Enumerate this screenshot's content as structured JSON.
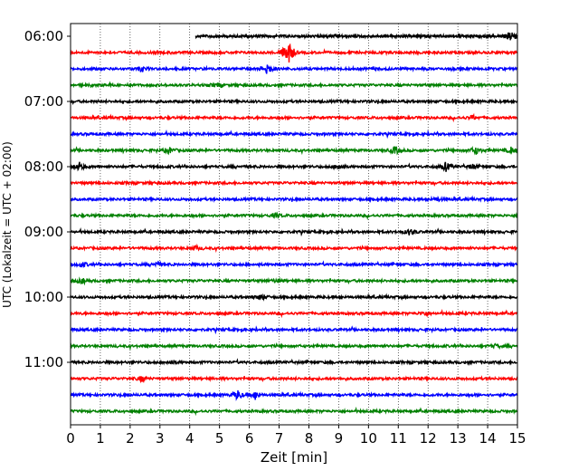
{
  "chart_data": {
    "type": "line",
    "title": "",
    "xlabel": "Zeit  [min]",
    "ylabel": "UTC (Lokalzeit = UTC + 02:00)",
    "xlim": [
      0,
      15
    ],
    "x_ticks": [
      "0",
      "1",
      "2",
      "3",
      "4",
      "5",
      "6",
      "7",
      "8",
      "9",
      "10",
      "11",
      "12",
      "13",
      "14",
      "15"
    ],
    "y_tick_labels": [
      "06:00",
      "07:00",
      "08:00",
      "09:00",
      "10:00",
      "11:00"
    ],
    "grid": "vertical dotted lines at each minute",
    "trace_minutes": 15,
    "trace_colors_cycle": [
      "#000000",
      "#ff0000",
      "#0000ff",
      "#008000"
    ],
    "traces": [
      {
        "start_time": "06:00",
        "data_start_min": 4.2,
        "events": [
          {
            "minute": 14.8,
            "amplitude": 0.9
          }
        ]
      },
      {
        "start_time": "06:15",
        "data_start_min": 0,
        "events": [
          {
            "minute": 7.3,
            "amplitude": 2.5
          }
        ]
      },
      {
        "start_time": "06:30",
        "data_start_min": 0,
        "events": [
          {
            "minute": 6.6,
            "amplitude": 1.0
          },
          {
            "minute": 2.4,
            "amplitude": 0.4
          }
        ]
      },
      {
        "start_time": "06:45",
        "data_start_min": 0,
        "events": [
          {
            "minute": 4.9,
            "amplitude": 0.3
          }
        ]
      },
      {
        "start_time": "07:00",
        "data_start_min": 0,
        "events": []
      },
      {
        "start_time": "07:15",
        "data_start_min": 0,
        "events": [
          {
            "minute": 13.5,
            "amplitude": 0.3
          }
        ]
      },
      {
        "start_time": "07:30",
        "data_start_min": 0,
        "events": []
      },
      {
        "start_time": "07:45",
        "data_start_min": 0,
        "events": [
          {
            "minute": 3.3,
            "amplitude": 0.5
          },
          {
            "minute": 10.9,
            "amplitude": 0.6
          },
          {
            "minute": 13.6,
            "amplitude": 0.6
          },
          {
            "minute": 14.8,
            "amplitude": 0.5
          }
        ]
      },
      {
        "start_time": "08:00",
        "data_start_min": 0,
        "events": [
          {
            "minute": 0.3,
            "amplitude": 0.6
          },
          {
            "minute": 9.0,
            "amplitude": 0.5
          },
          {
            "minute": 12.6,
            "amplitude": 0.7
          },
          {
            "minute": 13.5,
            "amplitude": 0.4
          }
        ]
      },
      {
        "start_time": "08:15",
        "data_start_min": 0,
        "events": []
      },
      {
        "start_time": "08:30",
        "data_start_min": 0,
        "events": [
          {
            "minute": 12.3,
            "amplitude": 0.3
          }
        ]
      },
      {
        "start_time": "08:45",
        "data_start_min": 0,
        "events": [
          {
            "minute": 6.9,
            "amplitude": 0.3
          }
        ]
      },
      {
        "start_time": "09:00",
        "data_start_min": 0,
        "events": [
          {
            "minute": 11.4,
            "amplitude": 0.5
          }
        ]
      },
      {
        "start_time": "09:15",
        "data_start_min": 0,
        "events": [
          {
            "minute": 4.2,
            "amplitude": 0.3
          }
        ]
      },
      {
        "start_time": "09:30",
        "data_start_min": 0,
        "events": [
          {
            "minute": 0.4,
            "amplitude": 0.4
          },
          {
            "minute": 2.9,
            "amplitude": 0.3
          }
        ]
      },
      {
        "start_time": "09:45",
        "data_start_min": 0,
        "events": [
          {
            "minute": 0.4,
            "amplitude": 0.4
          },
          {
            "minute": 6.9,
            "amplitude": 0.3
          }
        ]
      },
      {
        "start_time": "10:00",
        "data_start_min": 0,
        "events": [
          {
            "minute": 6.4,
            "amplitude": 0.5
          }
        ]
      },
      {
        "start_time": "10:15",
        "data_start_min": 0,
        "events": [
          {
            "minute": 11.9,
            "amplitude": 0.3
          }
        ]
      },
      {
        "start_time": "10:30",
        "data_start_min": 0,
        "events": []
      },
      {
        "start_time": "10:45",
        "data_start_min": 0,
        "events": [
          {
            "minute": 14.3,
            "amplitude": 0.3
          }
        ]
      },
      {
        "start_time": "11:00",
        "data_start_min": 0,
        "events": [
          {
            "minute": 3.4,
            "amplitude": 0.3
          }
        ]
      },
      {
        "start_time": "11:15",
        "data_start_min": 0,
        "events": [
          {
            "minute": 2.4,
            "amplitude": 0.4
          }
        ]
      },
      {
        "start_time": "11:30",
        "data_start_min": 0,
        "events": [
          {
            "minute": 5.6,
            "amplitude": 0.8
          },
          {
            "minute": 6.2,
            "amplitude": 0.6
          }
        ]
      },
      {
        "start_time": "11:45",
        "data_start_min": 0,
        "events": []
      }
    ]
  }
}
